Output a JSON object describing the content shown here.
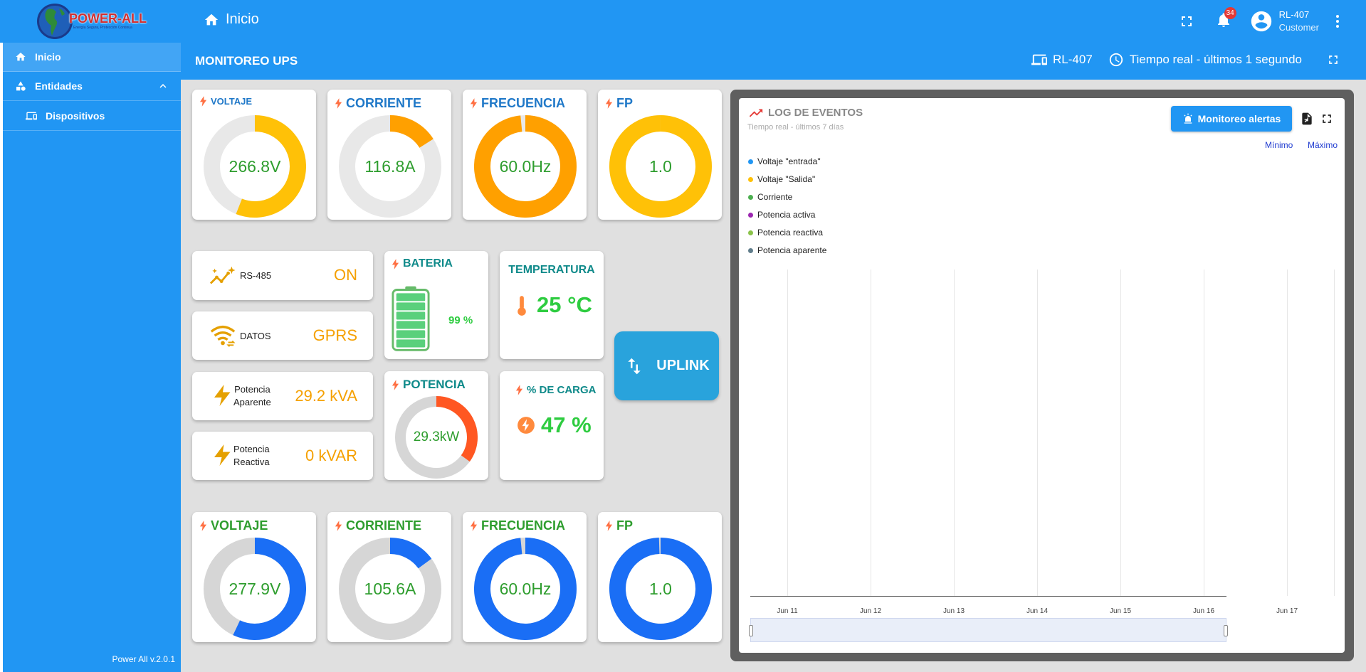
{
  "app": {
    "logo_text": "POWER-ALL",
    "logo_tagline": "Energía Segura, Protección Continua",
    "page_title": "Inicio",
    "notifications_count": "34",
    "user_name": "RL-407",
    "user_role": "Customer",
    "version": "Power All v.2.0.1"
  },
  "sidebar": {
    "items": [
      {
        "label": "Inicio",
        "icon": "home-icon"
      },
      {
        "label": "Entidades",
        "icon": "entities-icon"
      },
      {
        "label": "Dispositivos",
        "icon": "devices-icon"
      }
    ]
  },
  "dashboard": {
    "title": "MONITOREO UPS",
    "device": "RL-407",
    "time_range": "Tiempo real - últimos 1 segundo"
  },
  "colors": {
    "primary": "#2196f3",
    "gauge_yellow": "#ffc107",
    "gauge_orange": "#ffa000",
    "gauge_blue": "#1a6ef5",
    "gauge_red": "#ff5722",
    "track": "#e8e8e8",
    "value_green": "#2e9d2e",
    "value_orange": "#f5a000",
    "uplink": "#29a3dc"
  },
  "gauges_top": [
    {
      "title": "VOLTAJE",
      "value": "266.8V",
      "fraction": 0.56,
      "color": "#ffc107",
      "title_color": "#1f78c8",
      "title_size": "13px"
    },
    {
      "title": "CORRIENTE",
      "value": "116.8A",
      "fraction": 0.16,
      "color": "#ffa000",
      "title_color": "#1f78c8",
      "title_size": "18px"
    },
    {
      "title": "FRECUENCIA",
      "value": "60.0Hz",
      "fraction": 0.985,
      "color": "#ffa000",
      "title_color": "#1f78c8",
      "title_size": "18px"
    },
    {
      "title": "FP",
      "value": "1.0",
      "fraction": 1.0,
      "color": "#ffc107",
      "title_color": "#1f78c8",
      "title_size": "18px"
    }
  ],
  "gauges_bottom": [
    {
      "title": "VOLTAJE",
      "value": "277.9V",
      "fraction": 0.57,
      "color": "#1a6ef5",
      "title_color": "#2e9d2e",
      "title_size": "18px"
    },
    {
      "title": "CORRIENTE",
      "value": "105.6A",
      "fraction": 0.15,
      "color": "#1a6ef5",
      "title_color": "#2e9d2e",
      "title_size": "18px"
    },
    {
      "title": "FRECUENCIA",
      "value": "60.0Hz",
      "fraction": 0.985,
      "color": "#1a6ef5",
      "title_color": "#2e9d2e",
      "title_size": "18px"
    },
    {
      "title": "FP",
      "value": "1.0",
      "fraction": 0.995,
      "color": "#1a6ef5",
      "title_color": "#2e9d2e",
      "title_size": "18px"
    }
  ],
  "status": {
    "rs485": {
      "label": "RS-485",
      "value": "ON"
    },
    "datos": {
      "label": "DATOS",
      "value": "GPRS"
    },
    "potencia_aparente": {
      "label_1": "Potencia",
      "label_2": "Aparente",
      "value": "29.2 kVA"
    },
    "potencia_reactiva": {
      "label_1": "Potencia",
      "label_2": "Reactiva",
      "value": "0 kVAR"
    }
  },
  "bateria": {
    "title": "BATERIA",
    "value": "99 %",
    "level": 0.99
  },
  "temperatura": {
    "title": "TEMPERATURA",
    "value": "25 °C"
  },
  "potencia": {
    "title": "POTENCIA",
    "value": "29.3kW",
    "fraction": 0.35
  },
  "carga": {
    "title": "% DE CARGA",
    "value": "47 %"
  },
  "uplink": {
    "label": "UPLINK"
  },
  "log": {
    "title": "LOG DE EVENTOS",
    "subtitle": "Tiempo real - últimos 7 días",
    "alert_button": "Monitoreo alertas",
    "min_label": "Mínimo",
    "max_label": "Máximo",
    "legend": [
      {
        "name": "Voltaje \"entrada\"",
        "color": "#2196f3"
      },
      {
        "name": "Voltaje \"Salida\"",
        "color": "#ffc107"
      },
      {
        "name": "Corriente",
        "color": "#4caf50"
      },
      {
        "name": "Potencia activa",
        "color": "#9c27b0"
      },
      {
        "name": "Potencia reactiva",
        "color": "#8bc34a"
      },
      {
        "name": "Potencia aparente",
        "color": "#607d8b"
      }
    ],
    "x_ticks": [
      "Jun 11",
      "Jun 12",
      "Jun 13",
      "Jun 14",
      "Jun 15",
      "Jun 16",
      "Jun 17"
    ]
  }
}
